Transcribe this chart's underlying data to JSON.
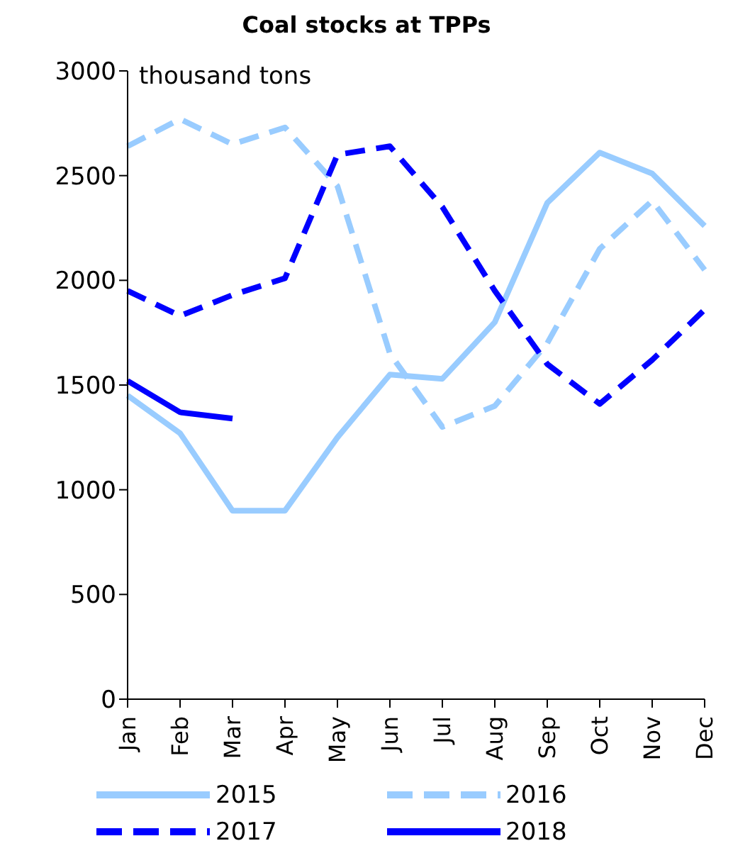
{
  "chart_data": {
    "type": "line",
    "title": "Coal stocks at TPPs",
    "ylabel": "thousand tons",
    "categories": [
      "Jan",
      "Feb",
      "Mar",
      "Apr",
      "May",
      "Jun",
      "Jul",
      "Aug",
      "Sep",
      "Oct",
      "Nov",
      "Dec"
    ],
    "series": [
      {
        "name": "2015",
        "color": "#99ccff",
        "line_style": "solid",
        "values": [
          1450,
          1270,
          900,
          900,
          1250,
          1550,
          1530,
          1800,
          2370,
          2610,
          2510,
          2260
        ]
      },
      {
        "name": "2016",
        "color": "#99ccff",
        "line_style": "dashed",
        "values": [
          2640,
          2770,
          2650,
          2730,
          2450,
          1650,
          1300,
          1400,
          1700,
          2150,
          2380,
          2050
        ]
      },
      {
        "name": "2017",
        "color": "#0000ff",
        "line_style": "dashed",
        "values": [
          1950,
          1830,
          1930,
          2010,
          2600,
          2640,
          2350,
          1950,
          1600,
          1410,
          1620,
          1860
        ]
      },
      {
        "name": "2018",
        "color": "#0000ff",
        "line_style": "solid",
        "values": [
          1520,
          1370,
          1340,
          null,
          null,
          null,
          null,
          null,
          null,
          null,
          null,
          null
        ]
      }
    ],
    "ylim": [
      0,
      3000
    ],
    "yticks": [
      0,
      500,
      1000,
      1500,
      2000,
      2500,
      3000
    ],
    "grid": false,
    "legend": "bottom",
    "marker": "none"
  }
}
